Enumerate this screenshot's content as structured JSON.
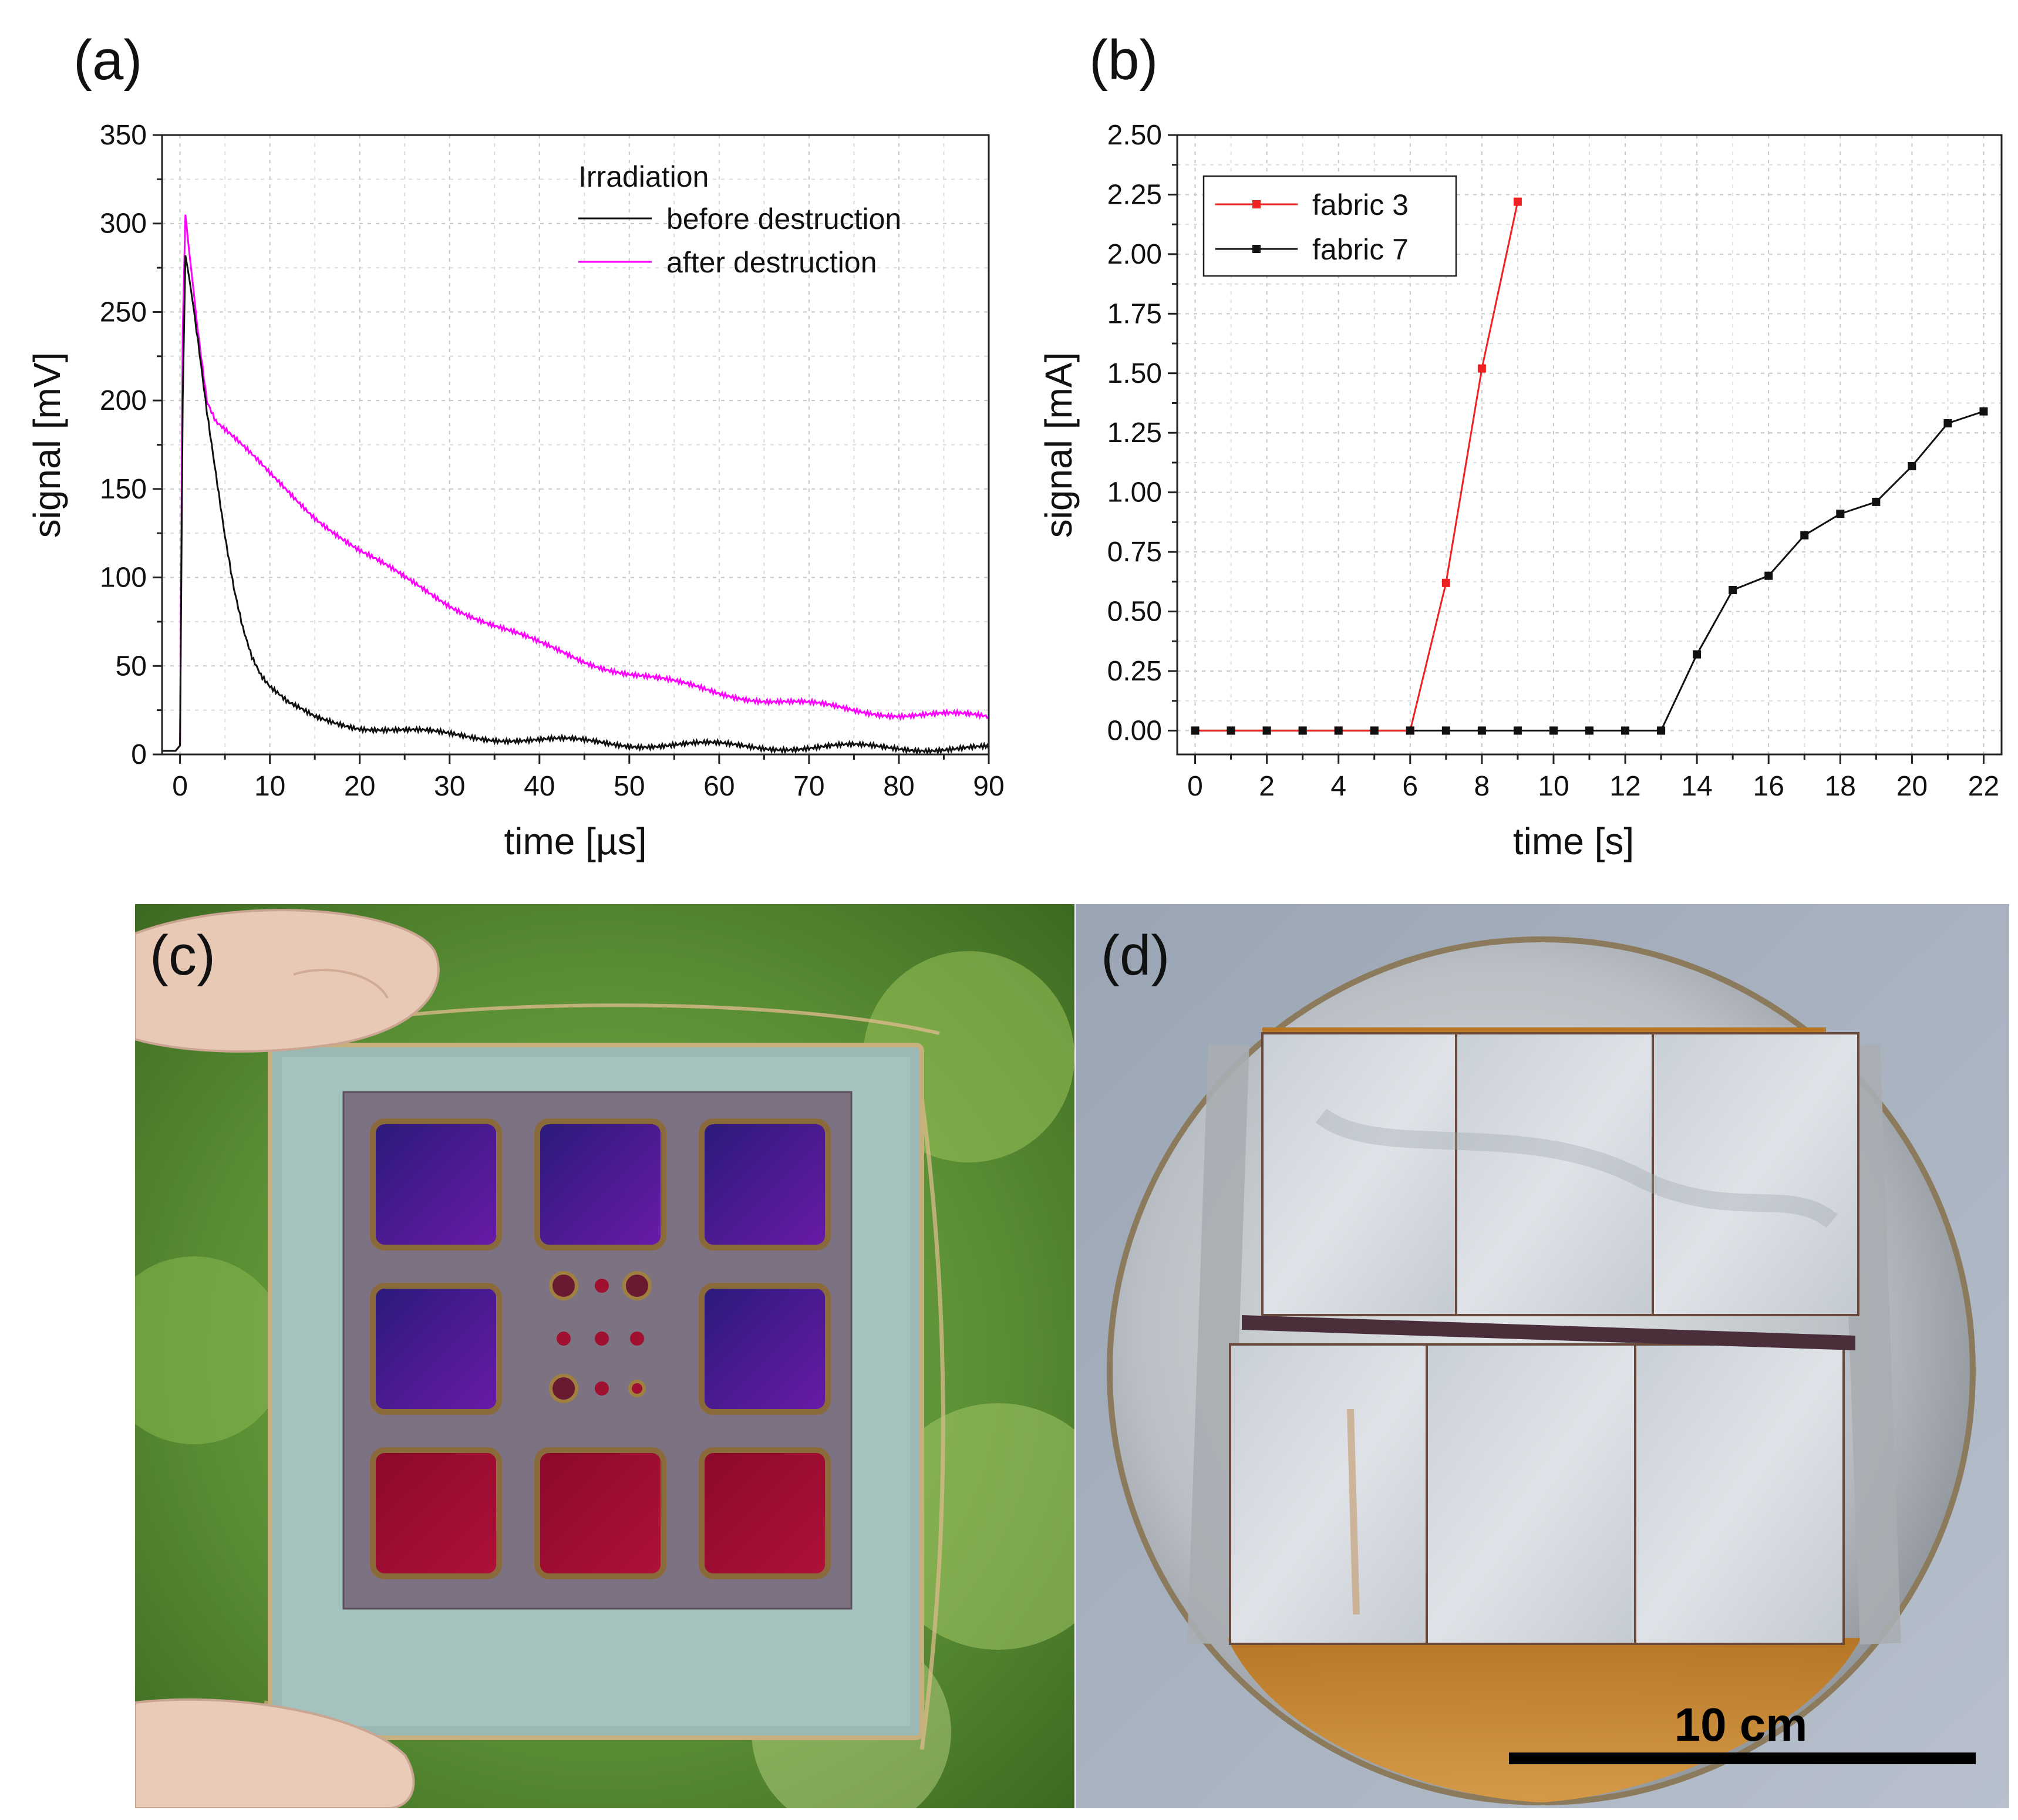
{
  "panels": {
    "a": {
      "label": "(a)"
    },
    "b": {
      "label": "(b)"
    },
    "c": {
      "label": "(c)"
    },
    "d": {
      "label": "(d)",
      "scale_bar_label": "10 cm"
    }
  },
  "colors": {
    "before": "#111111",
    "after": "#ff00ff",
    "fabric3": "#ee2222",
    "fabric7": "#111111"
  },
  "chart_data": [
    {
      "type": "line",
      "panel": "a",
      "xlabel": "time [µs]",
      "ylabel": "signal [mV]",
      "xlim": [
        -2,
        90
      ],
      "ylim": [
        0,
        350
      ],
      "xticks": [
        0,
        10,
        20,
        30,
        40,
        50,
        60,
        70,
        80,
        90
      ],
      "yticks": [
        0,
        50,
        100,
        150,
        200,
        250,
        300,
        350
      ],
      "legend_title": "Irradiation",
      "legend_position": "top-right",
      "series": [
        {
          "name": "before destruction",
          "x": [
            -2,
            -0.5,
            0,
            0.3,
            0.6,
            1,
            2,
            3,
            4,
            5,
            6,
            7,
            8,
            9,
            10,
            12,
            15,
            20,
            25,
            30,
            40,
            50,
            60,
            70,
            80,
            90
          ],
          "y": [
            2,
            2,
            5,
            200,
            282,
            270,
            235,
            195,
            160,
            125,
            95,
            72,
            55,
            44,
            37,
            28,
            21,
            16,
            13,
            11,
            8,
            6,
            5,
            4,
            4,
            3
          ]
        },
        {
          "name": "after destruction",
          "x": [
            -2,
            -0.5,
            0,
            0.3,
            0.6,
            1,
            2,
            3,
            4,
            6,
            8,
            10,
            15,
            20,
            25,
            30,
            35,
            40,
            45,
            50,
            55,
            60,
            65,
            70,
            75,
            80,
            85,
            90
          ],
          "y": [
            2,
            2,
            5,
            240,
            305,
            285,
            240,
            200,
            188,
            178,
            168,
            158,
            135,
            115,
            99,
            85,
            73,
            62,
            53,
            46,
            40,
            35,
            31,
            28,
            25,
            23,
            22,
            21
          ]
        }
      ]
    },
    {
      "type": "line",
      "panel": "b",
      "xlabel": "time [s]",
      "ylabel": "signal [mA]",
      "xlim": [
        -0.5,
        22.5
      ],
      "ylim": [
        -0.1,
        2.5
      ],
      "xticks": [
        0,
        2,
        4,
        6,
        8,
        10,
        12,
        14,
        16,
        18,
        20,
        22
      ],
      "yticks": [
        "0.00",
        "0.25",
        "0.50",
        "0.75",
        "1.00",
        "1.25",
        "1.50",
        "1.75",
        "2.00",
        "2.25",
        "2.50"
      ],
      "legend_position": "top-left",
      "series": [
        {
          "name": "fabric 3",
          "x": [
            0,
            1,
            2,
            3,
            4,
            5,
            6,
            7,
            8,
            9
          ],
          "y": [
            0,
            0,
            0,
            0,
            0,
            0,
            0,
            0.62,
            1.52,
            2.22
          ]
        },
        {
          "name": "fabric 7",
          "x": [
            0,
            1,
            2,
            3,
            4,
            5,
            6,
            7,
            8,
            9,
            10,
            11,
            12,
            13,
            14,
            15,
            16,
            17,
            18,
            19,
            20,
            21,
            22
          ],
          "y": [
            0,
            0,
            0,
            0,
            0,
            0,
            0,
            0,
            0,
            0,
            0,
            0,
            0,
            0,
            0.32,
            0.59,
            0.65,
            0.82,
            0.91,
            0.96,
            1.11,
            1.29,
            1.34
          ]
        }
      ]
    }
  ]
}
